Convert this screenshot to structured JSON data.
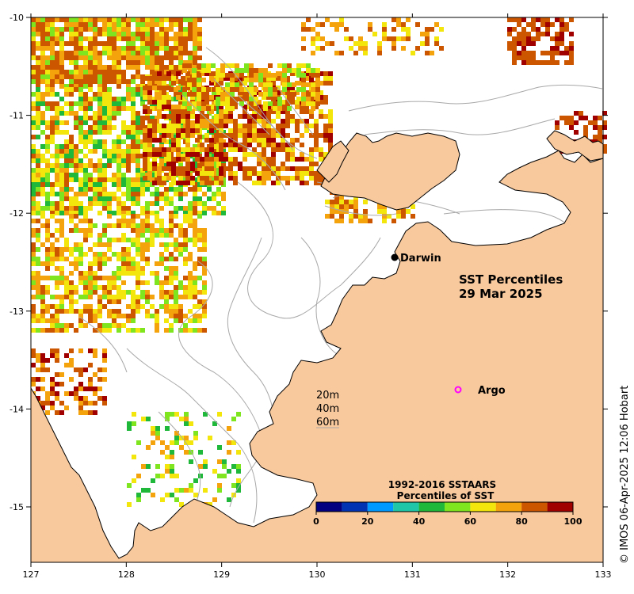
{
  "map": {
    "lon_range": [
      127,
      133
    ],
    "lat_range": [
      -15.6,
      -10
    ],
    "x_ticks": [
      "127",
      "128",
      "129",
      "130",
      "131",
      "132",
      "133"
    ],
    "y_ticks": [
      "-10",
      "-11",
      "-12",
      "-13",
      "-14",
      "-15"
    ],
    "colors": {
      "land": "#f9c99e",
      "sea": "#ffffff",
      "bathymetry": "#a8a8a8",
      "coastline": "#000000"
    }
  },
  "title": {
    "line1": "SST Percentiles",
    "line2": "29 Mar 2025"
  },
  "places": {
    "darwin": "Darwin",
    "argo": "Argo"
  },
  "depth_legend": [
    "20m",
    "40m",
    "60m"
  ],
  "colorbar": {
    "title_line1": "1992-2016 SSTAARS",
    "title_line2": "Percentiles of SST",
    "ticks": [
      "0",
      "20",
      "40",
      "60",
      "80",
      "100"
    ],
    "colors": [
      "#000080",
      "#0033b3",
      "#0099ff",
      "#1fc7a8",
      "#1fb83a",
      "#7fe51f",
      "#f2e60d",
      "#f5a30d",
      "#cc5500",
      "#a00000"
    ]
  },
  "credit": "© IMOS 06-Apr-2025 12:06 Hobart"
}
